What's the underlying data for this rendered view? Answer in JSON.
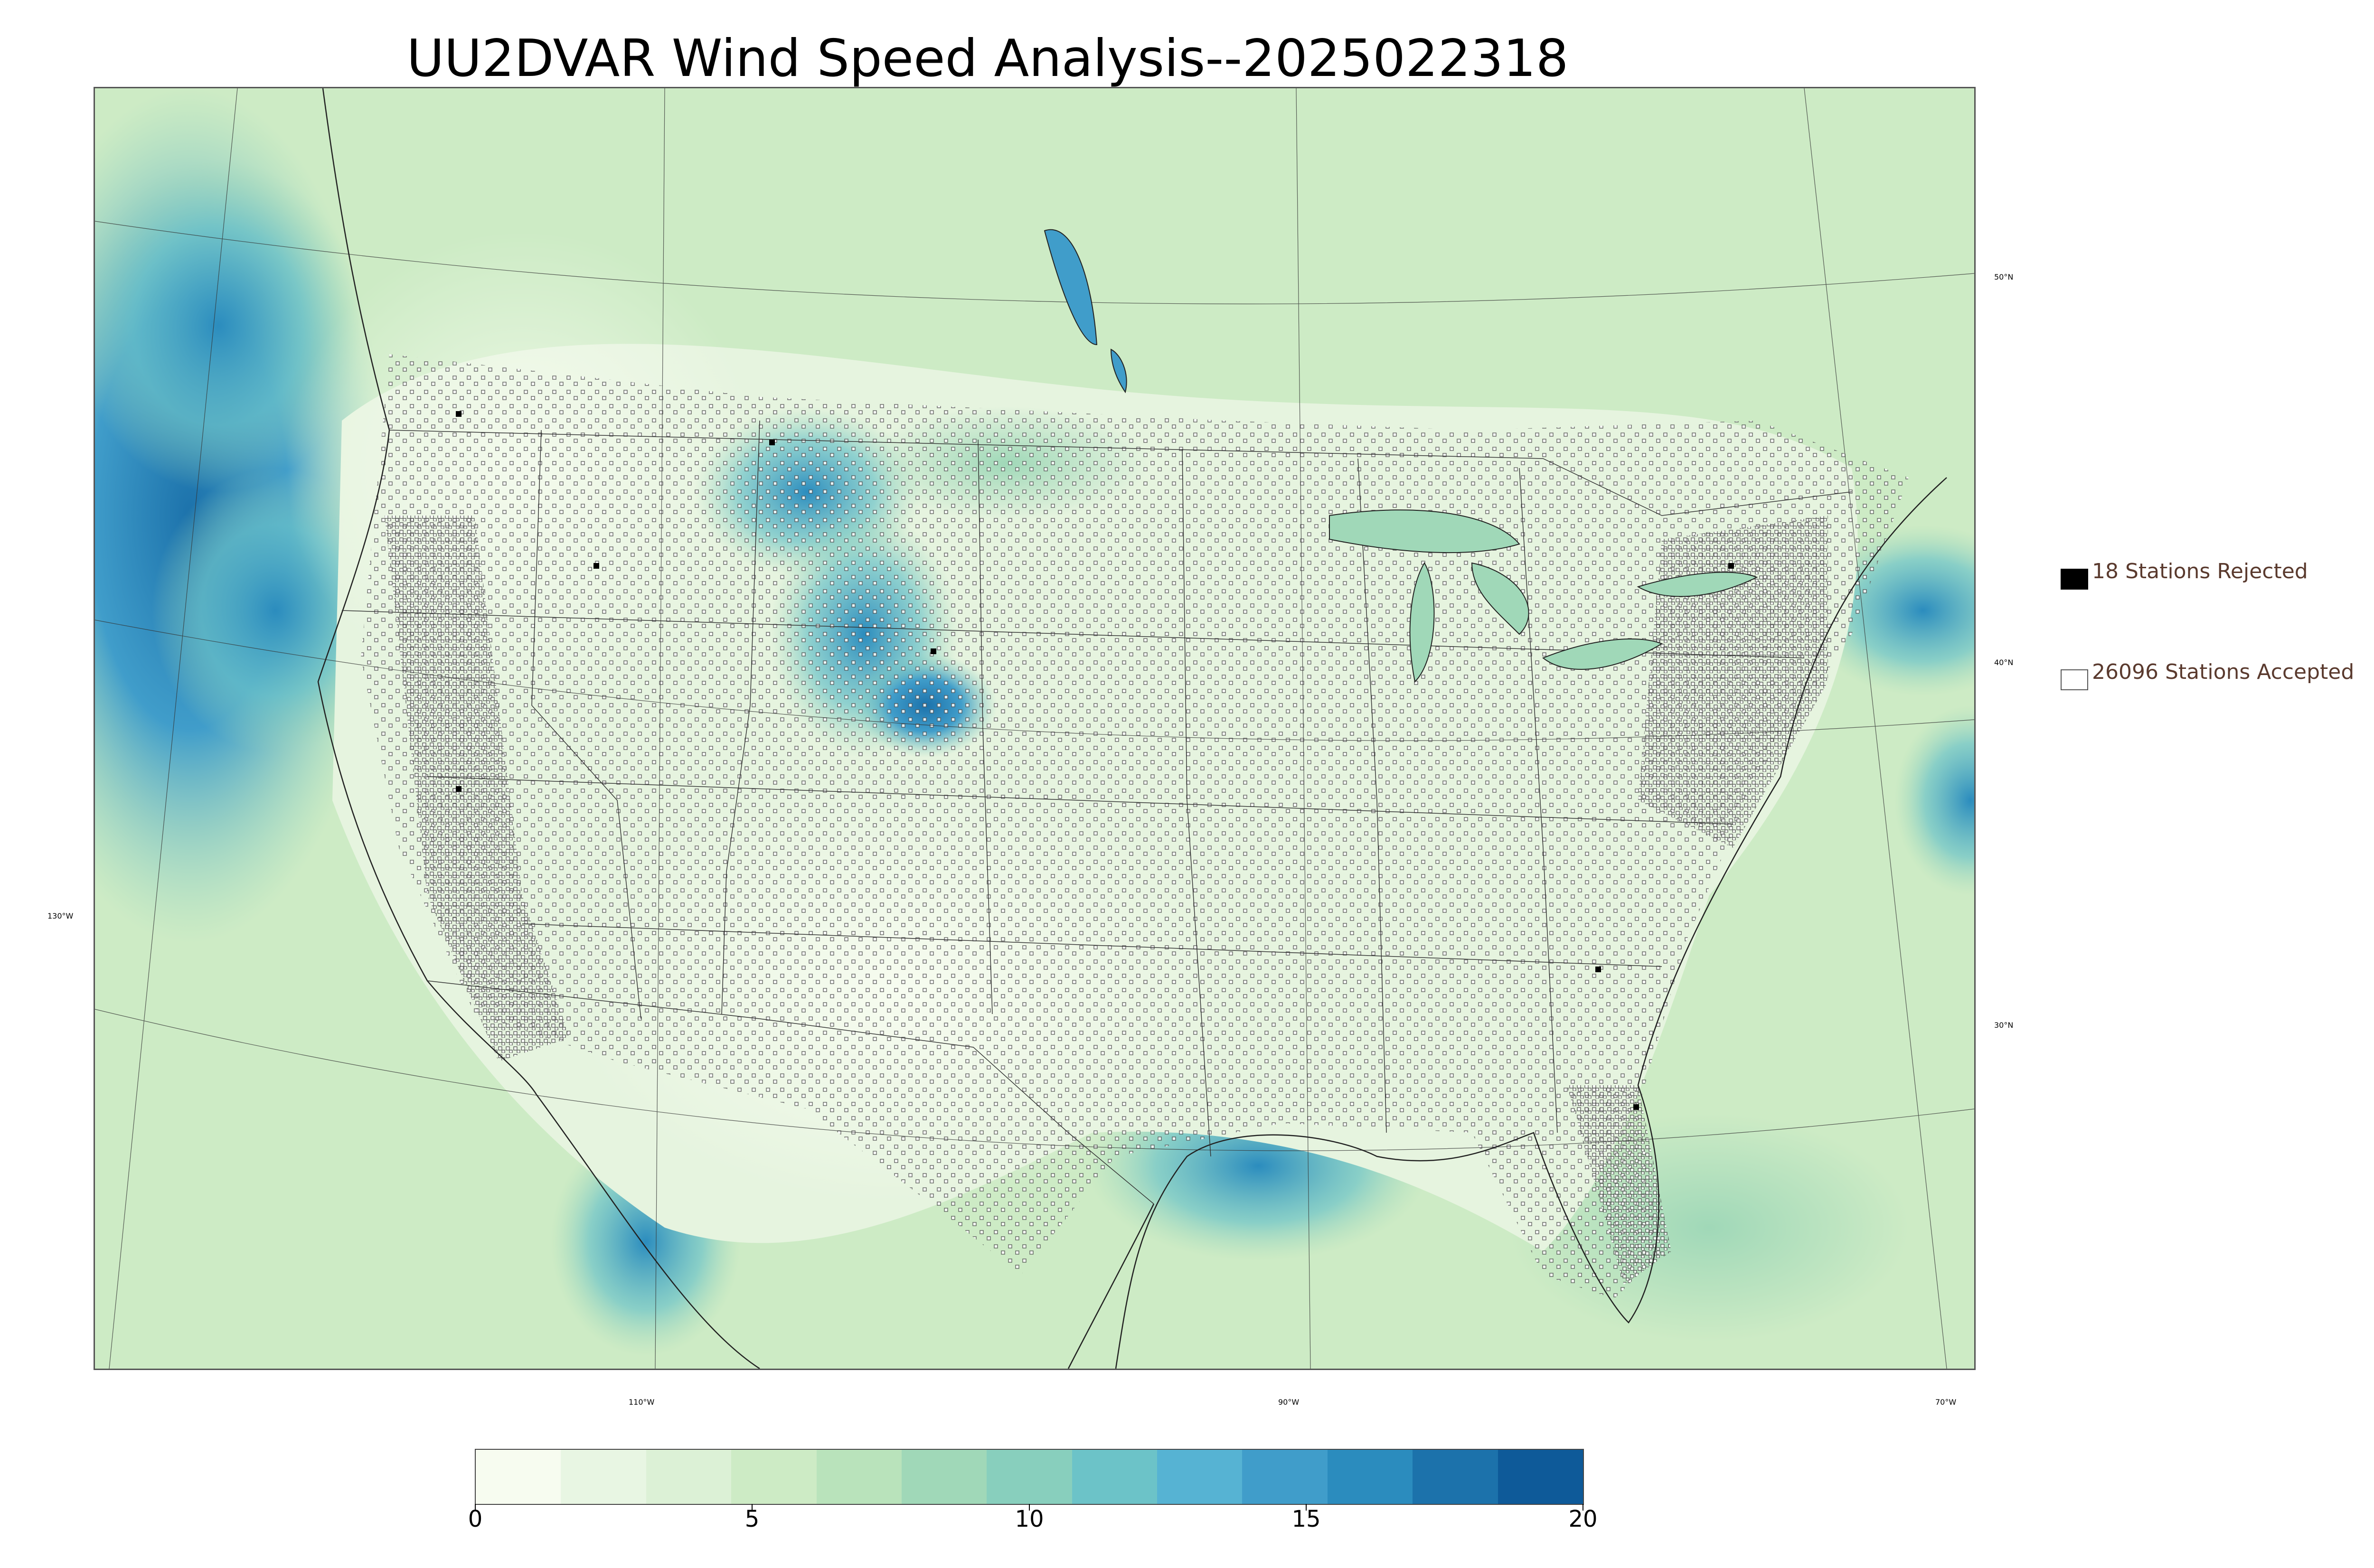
{
  "title": "UU2DVAR Wind Speed Analysis--2025022318",
  "longitude_labels": [
    "130°W",
    "110°W",
    "90°W",
    "70°W"
  ],
  "latitude_labels": [
    "50°N",
    "40°N",
    "30°N"
  ],
  "legend": {
    "rejected": {
      "text": "18 Stations Rejected",
      "count": 18,
      "marker_color": "#000000"
    },
    "accepted": {
      "text": "26096 Stations Accepted",
      "count": 26096,
      "marker_color": "#ffffff"
    }
  },
  "colorbar": {
    "min": 0,
    "max": 20,
    "ticks": [
      "0",
      "5",
      "10",
      "15",
      "20"
    ],
    "colors": [
      "#f7fcf0",
      "#e8f6e3",
      "#dcf1d6",
      "#cdebc5",
      "#b9e3bb",
      "#a0d8b8",
      "#88cfbd",
      "#6cc3c8",
      "#56b3d3",
      "#409dca",
      "#2b8cbe",
      "#1c72ab",
      "#0e5a99"
    ]
  },
  "colors": {
    "ocean_wind": "#5fb0d6",
    "land_base": "#e6f4df",
    "border_line": "#333333"
  }
}
